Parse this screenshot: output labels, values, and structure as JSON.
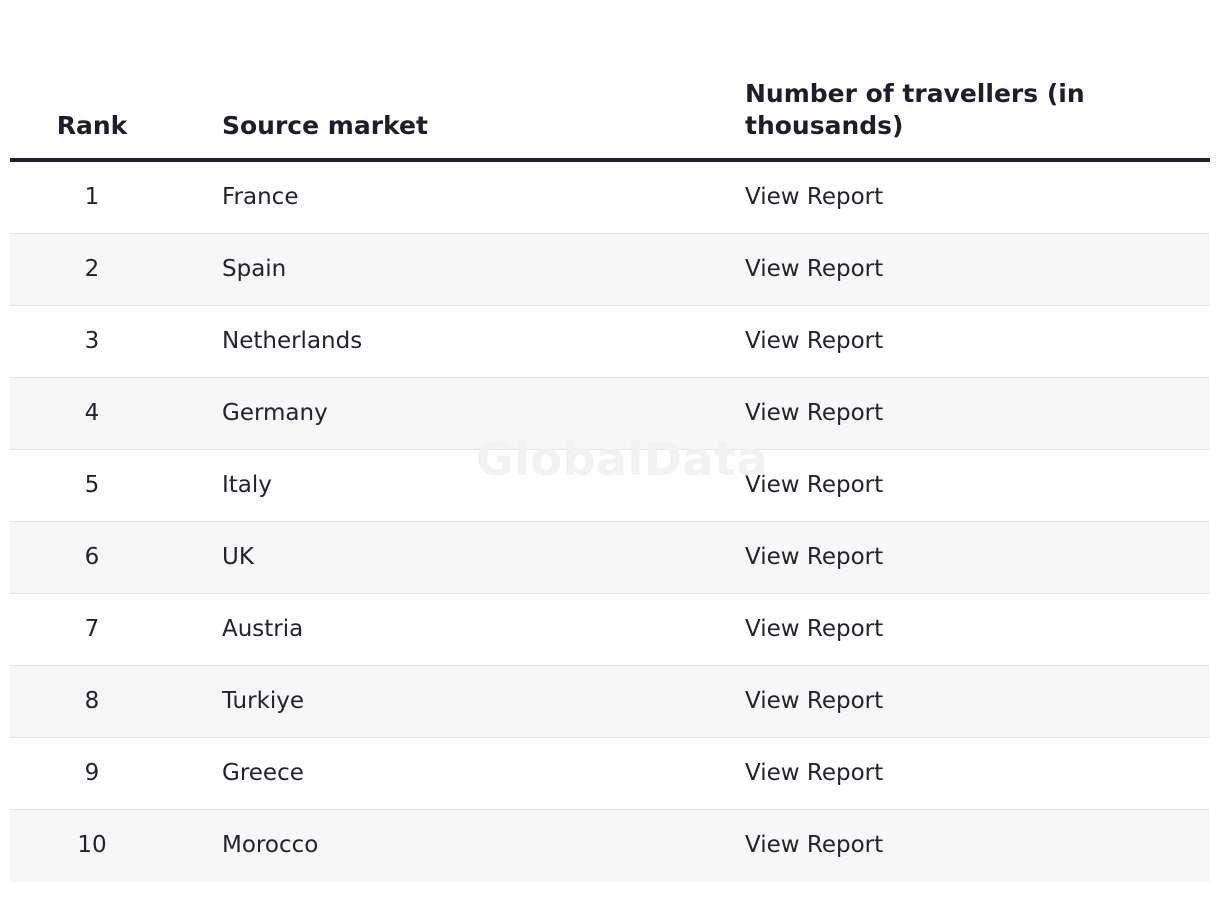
{
  "table": {
    "headers": {
      "rank": "Rank",
      "source_market": "Source market",
      "travellers": "Number of travellers (in thousands)"
    },
    "rows": [
      {
        "rank": "1",
        "market": "France",
        "report": "View Report"
      },
      {
        "rank": "2",
        "market": "Spain",
        "report": "View Report"
      },
      {
        "rank": "3",
        "market": "Netherlands",
        "report": "View Report"
      },
      {
        "rank": "4",
        "market": "Germany",
        "report": "View Report"
      },
      {
        "rank": "5",
        "market": "Italy",
        "report": "View Report"
      },
      {
        "rank": "6",
        "market": "UK",
        "report": "View Report"
      },
      {
        "rank": "7",
        "market": "Austria",
        "report": "View Report"
      },
      {
        "rank": "8",
        "market": "Turkiye",
        "report": "View Report"
      },
      {
        "rank": "9",
        "market": "Greece",
        "report": "View Report"
      },
      {
        "rank": "10",
        "market": "Morocco",
        "report": "View Report"
      }
    ]
  },
  "watermark": "GlobalData"
}
